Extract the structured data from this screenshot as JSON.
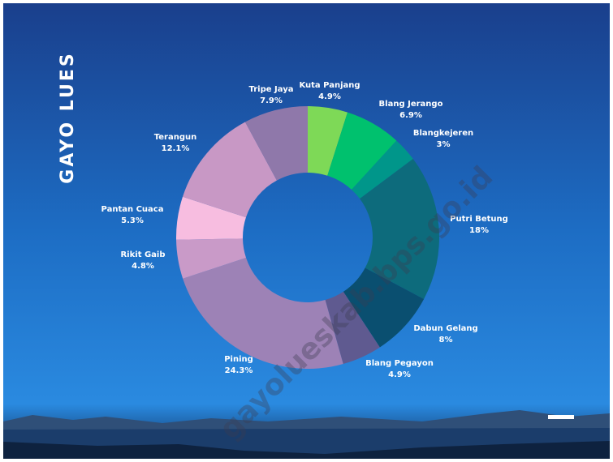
{
  "chart_data": {
    "type": "donut",
    "title": "GAYO LUES",
    "watermark": "gayolueskab.bps.go.id",
    "categories": [
      "Kuta Panjang",
      "Blang Jerango",
      "Blangkejeren",
      "Putri Betung",
      "Dabun Gelang",
      "Blang Pegayon",
      "Pining",
      "Rikit Gaib",
      "Pantan Cuaca",
      "Terangun",
      "Tripe Jaya"
    ],
    "values": [
      4.9,
      6.9,
      3,
      18,
      8,
      4.9,
      24.3,
      4.8,
      5.3,
      12.1,
      7.9
    ],
    "value_labels": [
      "4.9%",
      "6.9%",
      "3%",
      "18%",
      "8%",
      "4.9%",
      "24.3%",
      "4.8%",
      "5.3%",
      "12.1%",
      "7.9%"
    ],
    "colors": [
      "#7ed957",
      "#00c16e",
      "#00968a",
      "#0d6b7c",
      "#0a4f70",
      "#5f5a90",
      "#9d82b6",
      "#c99ac8",
      "#f7bde0",
      "#c898c5",
      "#8f78aa"
    ]
  }
}
